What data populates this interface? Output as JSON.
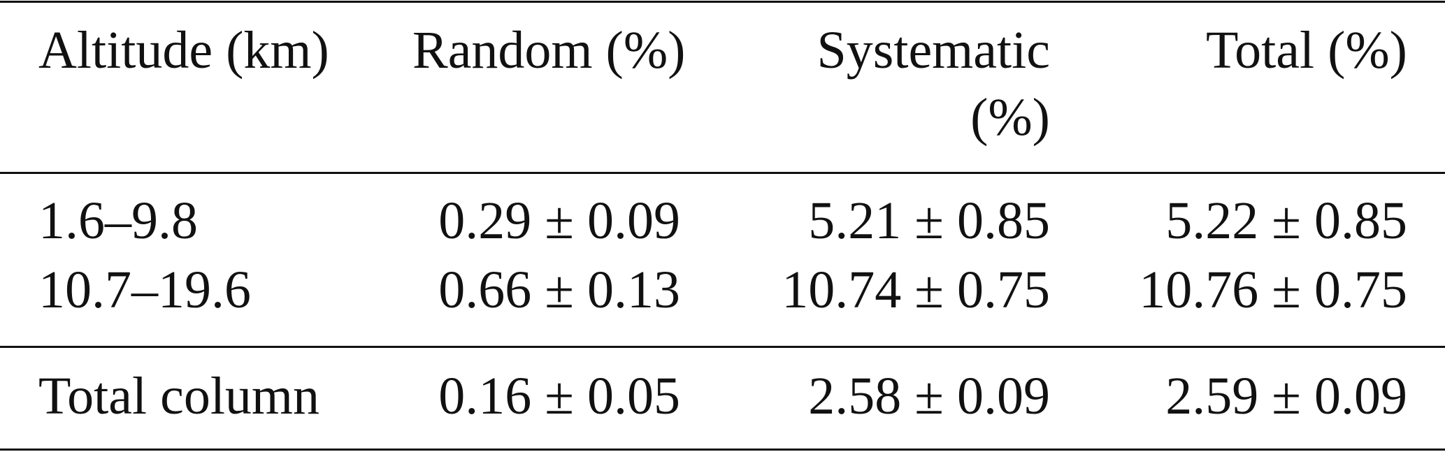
{
  "table": {
    "header": [
      "Altitude (km)",
      "Random (%)",
      "Systematic (%)",
      "Total (%)"
    ],
    "rows": [
      [
        "1.6–9.8",
        "0.29 ± 0.09",
        "5.21 ± 0.85",
        "5.22 ± 0.85"
      ],
      [
        "10.7–19.6",
        "0.66 ± 0.13",
        "10.74 ± 0.75",
        "10.76 ± 0.75"
      ],
      [
        "Total column",
        "0.16 ± 0.05",
        "2.58 ± 0.09",
        "2.59 ± 0.09"
      ]
    ]
  }
}
